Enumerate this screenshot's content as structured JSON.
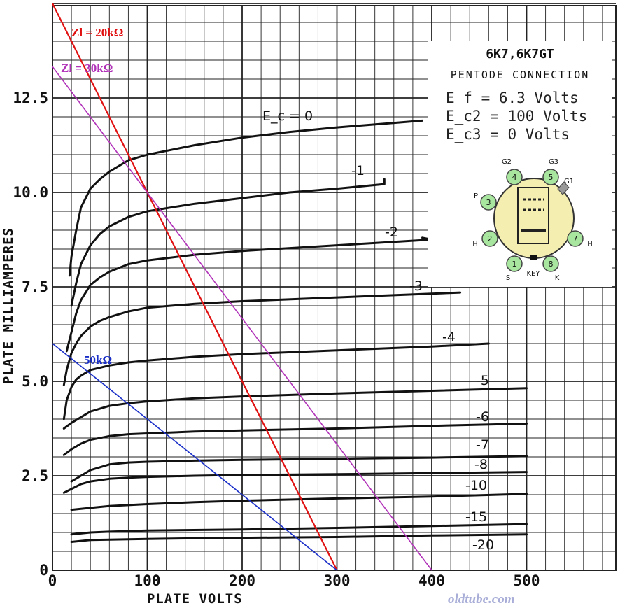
{
  "chart_data": {
    "type": "line",
    "title": "6K7,6K7GT",
    "subtitle": "PENTODE CONNECTION",
    "xlabel": "PLATE VOLTS",
    "ylabel": "PLATE MILLIAMPERES",
    "xlim": [
      0,
      600
    ],
    "ylim": [
      0,
      15
    ],
    "grid": true,
    "x_ticks": [
      0,
      100,
      200,
      300,
      400,
      500
    ],
    "x_tick_labels": [
      "0",
      "100",
      "200",
      "300",
      "400",
      "500"
    ],
    "y_ticks": [
      0,
      2.5,
      5.0,
      7.5,
      10.0,
      12.5
    ],
    "y_tick_labels": [
      "0",
      "2.5",
      "5.0",
      "7.5",
      "10.0",
      "12.5"
    ],
    "conditions": [
      "E_f = 6.3 Volts",
      "E_c2 = 100 Volts",
      "E_c3 = 0 Volts"
    ],
    "series": [
      {
        "name": "E_c = 0",
        "x": [
          18,
          20,
          25,
          30,
          40,
          50,
          60,
          80,
          100,
          150,
          200,
          250,
          300,
          350,
          390
        ],
        "y": [
          7.8,
          8.3,
          9.0,
          9.6,
          10.1,
          10.35,
          10.55,
          10.85,
          11.0,
          11.25,
          11.45,
          11.6,
          11.72,
          11.82,
          11.9
        ]
      },
      {
        "name": "-1",
        "x": [
          20,
          25,
          30,
          40,
          50,
          60,
          80,
          100,
          150,
          200,
          250,
          300,
          350,
          350
        ],
        "y": [
          7.0,
          7.6,
          8.1,
          8.6,
          8.9,
          9.1,
          9.35,
          9.5,
          9.7,
          9.85,
          10.0,
          10.1,
          10.22,
          10.35
        ]
      },
      {
        "name": "-2",
        "x": [
          15,
          20,
          25,
          30,
          40,
          50,
          60,
          80,
          100,
          150,
          200,
          300,
          400,
          390
        ],
        "y": [
          5.8,
          6.3,
          6.8,
          7.15,
          7.55,
          7.75,
          7.9,
          8.1,
          8.2,
          8.35,
          8.45,
          8.6,
          8.75,
          8.8
        ]
      },
      {
        "name": "-3",
        "x": [
          12,
          15,
          20,
          25,
          30,
          40,
          50,
          60,
          80,
          100,
          150,
          200,
          300,
          400,
          430
        ],
        "y": [
          4.9,
          5.3,
          5.75,
          6.0,
          6.2,
          6.45,
          6.6,
          6.7,
          6.85,
          6.95,
          7.05,
          7.12,
          7.22,
          7.32,
          7.35
        ]
      },
      {
        "name": "-4",
        "x": [
          12,
          15,
          20,
          25,
          30,
          40,
          60,
          80,
          100,
          150,
          200,
          300,
          400,
          460
        ],
        "y": [
          4.0,
          4.5,
          4.85,
          5.05,
          5.15,
          5.3,
          5.42,
          5.5,
          5.55,
          5.65,
          5.72,
          5.82,
          5.92,
          6.0
        ]
      },
      {
        "name": "-5",
        "x": [
          12,
          20,
          30,
          40,
          60,
          80,
          100,
          150,
          200,
          300,
          400,
          500
        ],
        "y": [
          3.75,
          3.9,
          4.05,
          4.2,
          4.35,
          4.42,
          4.47,
          4.55,
          4.6,
          4.68,
          4.75,
          4.82
        ]
      },
      {
        "name": "-6",
        "x": [
          12,
          20,
          30,
          40,
          60,
          80,
          100,
          150,
          200,
          300,
          400,
          500
        ],
        "y": [
          3.05,
          3.2,
          3.35,
          3.45,
          3.55,
          3.6,
          3.62,
          3.67,
          3.7,
          3.75,
          3.82,
          3.88
        ]
      },
      {
        "name": "-7",
        "x": [
          20,
          30,
          40,
          60,
          80,
          100,
          150,
          200,
          300,
          400,
          500
        ],
        "y": [
          2.35,
          2.5,
          2.65,
          2.8,
          2.85,
          2.87,
          2.9,
          2.92,
          2.95,
          2.98,
          3.02
        ]
      },
      {
        "name": "-8",
        "x": [
          12,
          20,
          30,
          40,
          60,
          80,
          100,
          150,
          200,
          300,
          400,
          500
        ],
        "y": [
          2.05,
          2.15,
          2.28,
          2.35,
          2.42,
          2.45,
          2.47,
          2.5,
          2.52,
          2.54,
          2.57,
          2.6
        ]
      },
      {
        "name": "-10",
        "x": [
          20,
          40,
          60,
          100,
          150,
          200,
          300,
          400,
          500
        ],
        "y": [
          1.6,
          1.65,
          1.7,
          1.75,
          1.8,
          1.84,
          1.9,
          1.95,
          2.02
        ]
      },
      {
        "name": "-15",
        "x": [
          20,
          40,
          60,
          100,
          200,
          300,
          400,
          500
        ],
        "y": [
          0.95,
          1.0,
          1.02,
          1.05,
          1.08,
          1.12,
          1.17,
          1.22
        ]
      },
      {
        "name": "-20",
        "x": [
          20,
          40,
          100,
          200,
          300,
          400,
          500
        ],
        "y": [
          0.75,
          0.8,
          0.83,
          0.86,
          0.88,
          0.92,
          0.95
        ]
      }
    ],
    "load_lines": [
      {
        "name": "Zl = 20kΩ",
        "color": "#e01010",
        "x": [
          0,
          300
        ],
        "y": [
          15.0,
          0
        ]
      },
      {
        "name": "Zl = 30kΩ",
        "color": "#b030b8",
        "x": [
          0,
          400
        ],
        "y": [
          13.33,
          0
        ]
      },
      {
        "name": "50kΩ",
        "color": "#1a2fc8",
        "x": [
          0,
          300
        ],
        "y": [
          6.0,
          0
        ]
      }
    ],
    "tube_pins": {
      "numbers": [
        "1",
        "2",
        "3",
        "4",
        "5",
        "7",
        "8"
      ],
      "labels": [
        "G2",
        "G3",
        "G1",
        "P",
        "H",
        "H",
        "S",
        "K",
        "KEY"
      ]
    }
  },
  "colors": {
    "grid": "#222222",
    "curves": "#111111",
    "pin_fill": "#a8e6a0",
    "base_fill": "#f4efb0"
  },
  "watermark": "oldtube.com"
}
